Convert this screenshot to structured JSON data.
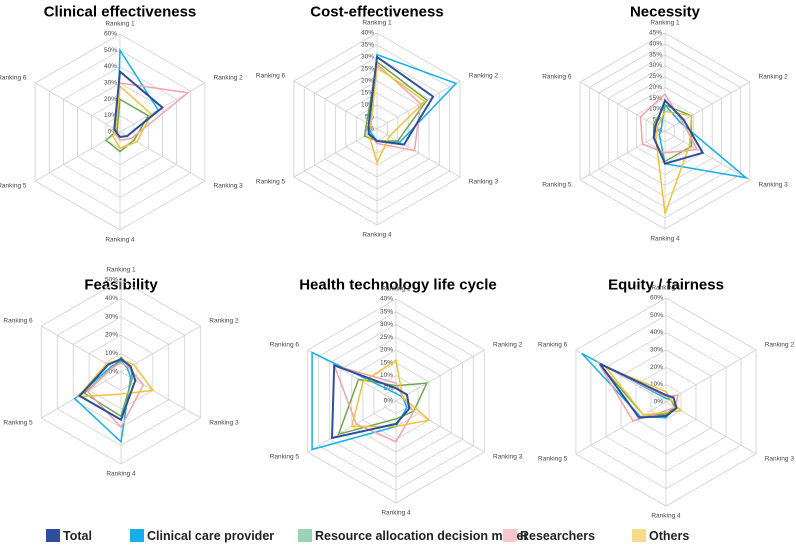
{
  "chart_data": [
    {
      "type": "radar",
      "title": "Clinical effectiveness",
      "categories": [
        "Ranking 1",
        "Ranking 2",
        "Ranking 3",
        "Ranking 4",
        "Ranking 5",
        "Ranking 6"
      ],
      "rmax": 60,
      "rstep": 10,
      "tick_suffix": "%",
      "series": [
        {
          "name": "Total",
          "values": [
            37,
            30,
            5,
            3,
            2,
            4
          ]
        },
        {
          "name": "Clinical care provider",
          "values": [
            50,
            27,
            5,
            3,
            2,
            2
          ]
        },
        {
          "name": "Resource allocation decision maker",
          "values": [
            20,
            20,
            10,
            12,
            10,
            2
          ]
        },
        {
          "name": "Researchers",
          "values": [
            30,
            48,
            8,
            5,
            3,
            3
          ]
        },
        {
          "name": "Others",
          "values": [
            28,
            22,
            12,
            10,
            5,
            3
          ]
        }
      ]
    },
    {
      "type": "radar",
      "title": "Cost-effectiveness",
      "categories": [
        "Ranking 1",
        "Ranking 2",
        "Ranking 3",
        "Ranking 4",
        "Ranking 5",
        "Ranking 6"
      ],
      "rmax": 40,
      "rstep": 5,
      "tick_suffix": "%",
      "series": [
        {
          "name": "Total",
          "values": [
            30,
            27,
            13,
            5,
            4,
            4
          ]
        },
        {
          "name": "Clinical care provider",
          "values": [
            31,
            38,
            11,
            5,
            3,
            3
          ]
        },
        {
          "name": "Resource allocation decision maker",
          "values": [
            28,
            24,
            10,
            5,
            6,
            5
          ]
        },
        {
          "name": "Researchers",
          "values": [
            27,
            21,
            18,
            6,
            4,
            4
          ]
        },
        {
          "name": "Others",
          "values": [
            26,
            23,
            6,
            14,
            4,
            3
          ]
        }
      ]
    },
    {
      "type": "radar",
      "title": "Necessity",
      "categories": [
        "Ranking 1",
        "Ranking 2",
        "Ranking 3",
        "Ranking 4",
        "Ranking 5",
        "Ranking 6"
      ],
      "rmax": 45,
      "rstep": 5,
      "tick_suffix": "%",
      "series": [
        {
          "name": "Total",
          "values": [
            14,
            10,
            20,
            15,
            6,
            5
          ]
        },
        {
          "name": "Clinical care provider",
          "values": [
            12,
            8,
            43,
            15,
            3,
            2
          ]
        },
        {
          "name": "Resource allocation decision maker",
          "values": [
            12,
            14,
            14,
            14,
            6,
            6
          ]
        },
        {
          "name": "Researchers",
          "values": [
            17,
            9,
            17,
            10,
            12,
            13
          ]
        },
        {
          "name": "Others",
          "values": [
            9,
            14,
            13,
            38,
            5,
            4
          ]
        }
      ]
    },
    {
      "type": "radar",
      "title": "Feasibility",
      "categories": [
        "Ranking 1",
        "Ranking 2",
        "Ranking 3",
        "Ranking 4",
        "Ranking 5",
        "Ranking 6"
      ],
      "rmax": 50,
      "rstep": 10,
      "tick_suffix": "%",
      "series": [
        {
          "name": "Total",
          "values": [
            7,
            6,
            9,
            26,
            26,
            8
          ]
        },
        {
          "name": "Clinical care provider",
          "values": [
            6,
            4,
            6,
            38,
            29,
            6
          ]
        },
        {
          "name": "Resource allocation decision maker",
          "values": [
            8,
            6,
            7,
            24,
            23,
            5
          ]
        },
        {
          "name": "Researchers",
          "values": [
            5,
            5,
            14,
            30,
            21,
            5
          ]
        },
        {
          "name": "Others",
          "values": [
            7,
            8,
            20,
            12,
            27,
            9
          ]
        }
      ]
    },
    {
      "type": "radar",
      "title": "Health technology life cycle",
      "categories": [
        "Ranking 1",
        "Ranking 2",
        "Ranking 3",
        "Ranking 4",
        "Ranking 5",
        "Ranking 6"
      ],
      "rmax": 40,
      "rstep": 5,
      "tick_suffix": "%",
      "series": [
        {
          "name": "Total",
          "values": [
            5,
            5,
            6,
            9,
            29,
            28
          ]
        },
        {
          "name": "Clinical care provider",
          "values": [
            3,
            3,
            5,
            10,
            38,
            38
          ]
        },
        {
          "name": "Resource allocation decision maker",
          "values": [
            6,
            14,
            8,
            7,
            26,
            17
          ]
        },
        {
          "name": "Researchers",
          "values": [
            7,
            3,
            8,
            16,
            18,
            28
          ]
        },
        {
          "name": "Others",
          "values": [
            16,
            3,
            15,
            10,
            20,
            15
          ]
        }
      ]
    },
    {
      "type": "radar",
      "title": "Equity / fairness",
      "categories": [
        "Ranking 1",
        "Ranking 2",
        "Ranking 3",
        "Ranking 4",
        "Ranking 5",
        "Ranking 6"
      ],
      "rmax": 60,
      "rstep": 10,
      "tick_suffix": "%",
      "series": [
        {
          "name": "Total",
          "values": [
            4,
            5,
            7,
            8,
            18,
            44
          ]
        },
        {
          "name": "Clinical care provider",
          "values": [
            2,
            3,
            6,
            9,
            17,
            56
          ]
        },
        {
          "name": "Resource allocation decision maker",
          "values": [
            4,
            3,
            6,
            7,
            15,
            45
          ]
        },
        {
          "name": "Researchers",
          "values": [
            3,
            8,
            6,
            5,
            22,
            45
          ]
        },
        {
          "name": "Others",
          "values": [
            6,
            3,
            10,
            6,
            15,
            40
          ]
        }
      ]
    }
  ],
  "series_colors": {
    "Total": "#2e4d9a",
    "Clinical care provider": "#10b0ec",
    "Resource allocation decision maker": "#6ea84a",
    "Researchers": "#f4a3a8",
    "Others": "#f3c233"
  },
  "legend": [
    {
      "name": "Total",
      "color": "#2e4d9a"
    },
    {
      "name": "Clinical care provider",
      "color": "#14aeea"
    },
    {
      "name": "Resource allocation decision maker",
      "color": "#9ad3b4"
    },
    {
      "name": "Researchers",
      "color": "#f8c7ca"
    },
    {
      "name": "Others",
      "color": "#f9d98a"
    }
  ]
}
